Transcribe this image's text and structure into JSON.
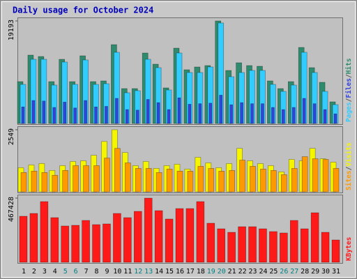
{
  "chart_data": [
    {
      "type": "bar",
      "title": "Daily usage for October 2024",
      "legend_separator": "/",
      "series": [
        {
          "name": "Pages",
          "color": "#33ccff",
          "values": [
            7314,
            12015,
            12015,
            7183,
            11493,
            7314,
            11885,
            7314,
            7444,
            13321,
            5746,
            6138,
            12015,
            10448,
            6269,
            13191,
            9534,
            9534,
            10579,
            18806,
            8750,
            9534,
            9926,
            9926,
            7314,
            6008,
            7183,
            13321,
            9534,
            6008,
            3526
          ]
        },
        {
          "name": "Files",
          "color": "#3344dd",
          "values": [
            3100,
            4300,
            4200,
            3000,
            4000,
            2900,
            4300,
            3100,
            3200,
            4700,
            2600,
            2500,
            4500,
            3900,
            2600,
            4800,
            3600,
            3700,
            3800,
            5300,
            3500,
            3900,
            3700,
            3700,
            3000,
            2600,
            3000,
            4700,
            3700,
            2600,
            1800
          ]
        },
        {
          "name": "Hits",
          "color": "#2e8b6e",
          "values": [
            7834,
            12797,
            12536,
            7834,
            12013,
            7834,
            12666,
            7834,
            7965,
            14755,
            6529,
            6529,
            13188,
            11099,
            6659,
            14102,
            10054,
            10577,
            10838,
            19193,
            9923,
            11360,
            10838,
            10707,
            7965,
            6529,
            7834,
            14232,
            10446,
            7704,
            4048
          ]
        }
      ],
      "ylim": [
        0,
        19193
      ],
      "yticks": [
        19193
      ]
    },
    {
      "type": "bar",
      "legend_separator": "/",
      "series": [
        {
          "name": "Sites",
          "color": "#ff9900",
          "values": [
            793,
            850,
            793,
            680,
            878,
            1076,
            1076,
            1076,
            1388,
            1784,
            1189,
            963,
            963,
            793,
            935,
            850,
            850,
            1048,
            963,
            850,
            878,
            1303,
            1048,
            935,
            878,
            708,
            963,
            1444,
            1359,
            1331,
            963
          ]
        },
        {
          "name": "Visits",
          "color": "#f5f500",
          "values": [
            991,
            1104,
            1161,
            878,
            1076,
            1246,
            1274,
            1501,
            2067,
            2549,
            1614,
            1076,
            1246,
            963,
            1076,
            1133,
            935,
            1416,
            1189,
            991,
            1161,
            1784,
            1274,
            1161,
            1076,
            821,
            1331,
            1274,
            1784,
            1359,
            1218
          ]
        }
      ],
      "ylim": [
        0,
        2549
      ],
      "yticks": [
        2549
      ]
    },
    {
      "type": "bar",
      "series": [
        {
          "name": "KBytes",
          "color": "#ff1a1a",
          "values": [
            335346,
            355670,
            442047,
            325184,
            264212,
            269293,
            304860,
            274374,
            279455,
            355670,
            325184,
            370913,
            467428,
            375994,
            315022,
            391237,
            391237,
            442047,
            284536,
            243888,
            218483,
            259131,
            259131,
            243888,
            223564,
            213402,
            304860,
            243888,
            360751,
            218483,
            162592
          ]
        }
      ],
      "ylim": [
        0,
        467428
      ],
      "yticks": [
        467428
      ],
      "categories": [
        "1",
        "2",
        "3",
        "4",
        "5",
        "6",
        "7",
        "8",
        "9",
        "10",
        "11",
        "12",
        "13",
        "14",
        "15",
        "16",
        "17",
        "18",
        "19",
        "20",
        "21",
        "22",
        "23",
        "24",
        "25",
        "26",
        "27",
        "28",
        "29",
        "30",
        "31"
      ],
      "category_colors": [
        "#000",
        "#000",
        "#000",
        "#000",
        "#008080",
        "#008080",
        "#000",
        "#000",
        "#000",
        "#000",
        "#000",
        "#008080",
        "#008080",
        "#000",
        "#000",
        "#000",
        "#000",
        "#000",
        "#008080",
        "#008080",
        "#000",
        "#000",
        "#000",
        "#000",
        "#000",
        "#008080",
        "#008080",
        "#000",
        "#000",
        "#000",
        "#000"
      ]
    }
  ]
}
